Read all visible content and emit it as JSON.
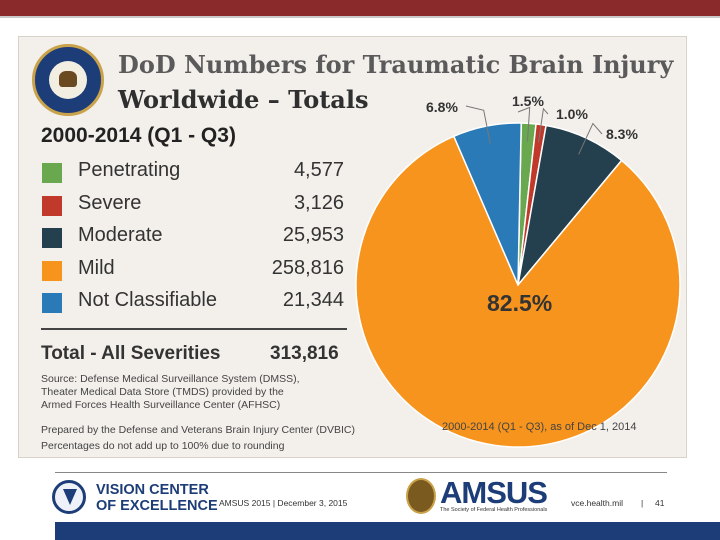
{
  "slide": {
    "title_line1": "DoD Numbers for Traumatic Brain Injury",
    "title_line2": "Worldwide – Totals",
    "period": "2000-2014 (Q1 - Q3)",
    "total_label": "Total - All Severities",
    "total_value": "313,816",
    "source_1": "Source: Defense Medical Surveillance System (DMSS),",
    "source_2": "Theater Medical Data Store (TMDS) provided by the",
    "source_3": "Armed Forces Health Surveillance Center (AFHSC)",
    "prepared_by": "Prepared by the Defense and Veterans Brain Injury Center (DVBIC)",
    "rounding_note": "Percentages do not add up to 100% due to rounding",
    "as_of": "2000-2014 (Q1 - Q3), as of Dec 1, 2014"
  },
  "legend": [
    {
      "label": "Penetrating",
      "value": "4,577",
      "color": "#6aa84f"
    },
    {
      "label": "Severe",
      "value": "3,126",
      "color": "#c0392b"
    },
    {
      "label": "Moderate",
      "value": "25,953",
      "color": "#243f4d"
    },
    {
      "label": "Mild",
      "value": "258,816",
      "color": "#f7941d"
    },
    {
      "label": "Not Classifiable",
      "value": "21,344",
      "color": "#2a7ab8"
    }
  ],
  "chart_data": {
    "type": "pie",
    "title": "DoD Numbers for Traumatic Brain Injury Worldwide – Totals",
    "categories": [
      "Penetrating",
      "Severe",
      "Moderate",
      "Mild",
      "Not Classifiable"
    ],
    "values": [
      4577,
      3126,
      25953,
      258816,
      21344
    ],
    "percent_labels": [
      "1.5%",
      "1.0%",
      "8.3%",
      "82.5%",
      "6.8%"
    ],
    "colors": [
      "#6aa84f",
      "#c0392b",
      "#243f4d",
      "#f7941d",
      "#2a7ab8"
    ],
    "legend_position": "left"
  },
  "footer": {
    "org_line1": "VISION CENTER",
    "org_line2": "OF EXCELLENCE",
    "event": "AMSUS 2015 | December 3, 2015",
    "amsus": "AMSUS",
    "amsus_sub": "The Society of Federal Health Professionals",
    "website": "vce.health.mil",
    "separator": "|",
    "page": "41"
  }
}
